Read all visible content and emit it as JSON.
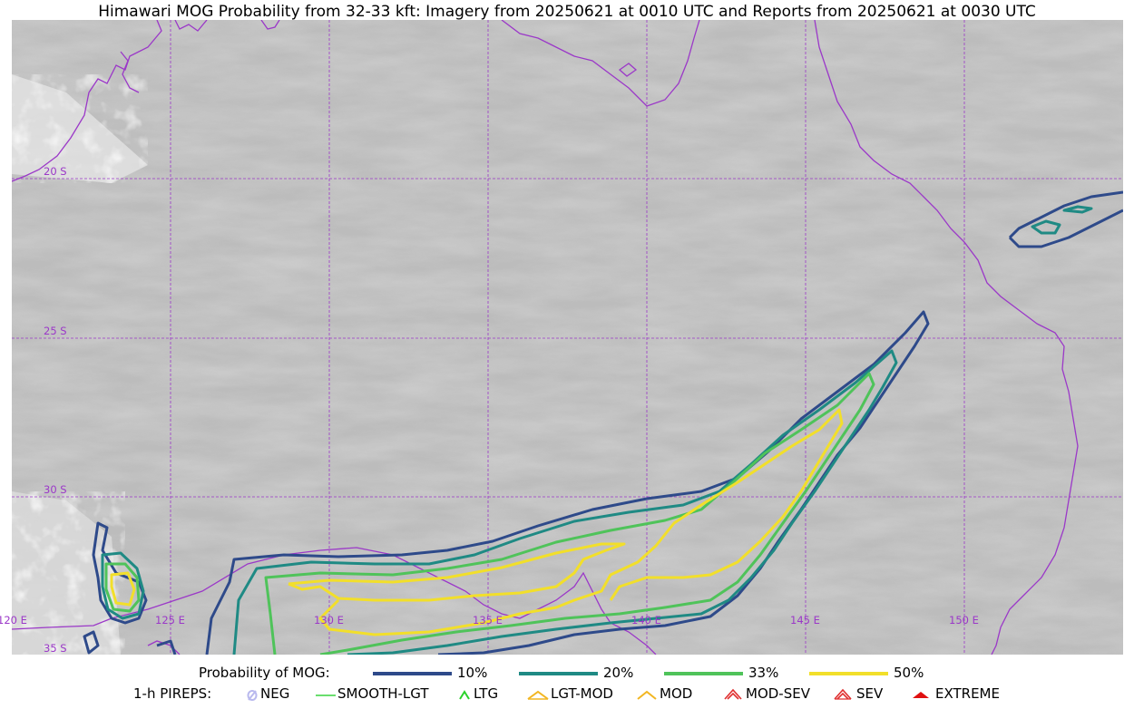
{
  "title": "Himawari MOG Probability from 32-33 kft: Imagery from 20250621 at 0010 UTC and Reports from 20250621 at 0030 UTC",
  "grid": {
    "lon_labels": [
      "120 E",
      "125 E",
      "130 E",
      "135 E",
      "140 E",
      "145 E",
      "150 E"
    ],
    "lat_labels": [
      "20 S",
      "25 S",
      "30 S",
      "35 S"
    ]
  },
  "colors": {
    "coastline": "#9b38c8",
    "gridline": "#9b38c8",
    "p10": "#2e4a8a",
    "p20": "#1f8a84",
    "p33": "#4fc35a",
    "p50": "#f2df2a"
  },
  "legend": {
    "probability_title": "Probability of MOG:",
    "probability_items": [
      {
        "label": "10%",
        "color": "#2e4a8a"
      },
      {
        "label": "20%",
        "color": "#1f8a84"
      },
      {
        "label": "33%",
        "color": "#4fc35a"
      },
      {
        "label": "50%",
        "color": "#f2df2a"
      }
    ],
    "pireps_title": "1-h PIREPS:",
    "pirep_items": [
      {
        "label": "NEG",
        "icon": "neg-icon",
        "color": "#b9b9ee"
      },
      {
        "label": "SMOOTH-LGT",
        "icon": "smooth-lgt-icon",
        "color": "#39d43e"
      },
      {
        "label": "LTG",
        "icon": "ltg-icon",
        "color": "#2ad22a"
      },
      {
        "label": "LGT-MOD",
        "icon": "lgt-mod-icon",
        "color": "#f2b622"
      },
      {
        "label": "MOD",
        "icon": "mod-icon",
        "color": "#f2b622"
      },
      {
        "label": "MOD-SEV",
        "icon": "mod-sev-icon",
        "color": "#e03030"
      },
      {
        "label": "SEV",
        "icon": "sev-icon",
        "color": "#e03030"
      },
      {
        "label": "EXTREME",
        "icon": "extreme-icon",
        "color": "#e01010"
      }
    ]
  }
}
